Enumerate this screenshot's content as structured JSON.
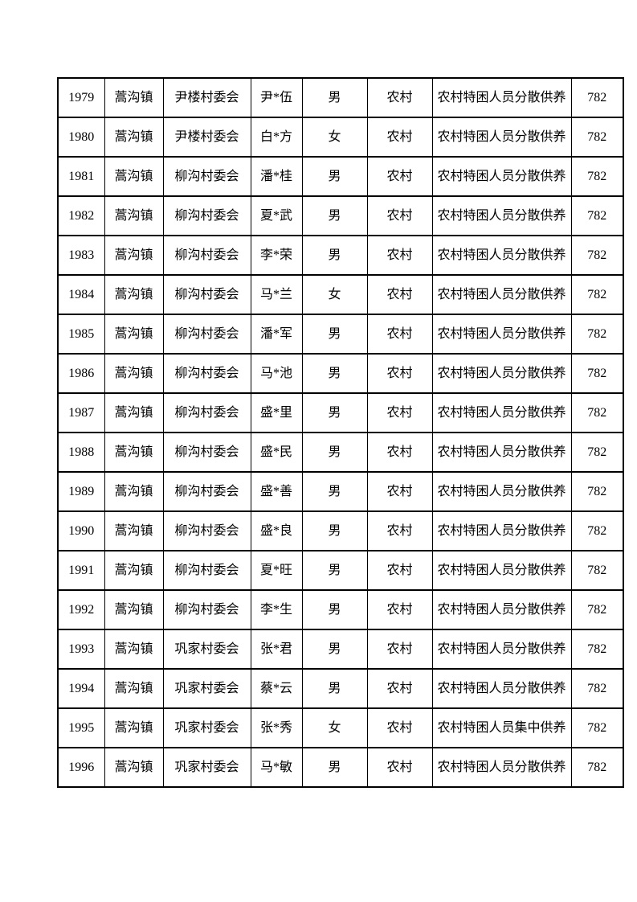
{
  "page": {
    "background_color": "#ffffff",
    "text_color": "#000000",
    "border_color": "#000000"
  },
  "table": {
    "column_keys": [
      "index",
      "town",
      "village",
      "name",
      "gender",
      "region",
      "category",
      "amount"
    ],
    "rows": [
      {
        "index": "1979",
        "town": "蒿沟镇",
        "village": "尹楼村委会",
        "name": "尹*伍",
        "gender": "男",
        "region": "农村",
        "category": "农村特困人员分散供养",
        "amount": "782"
      },
      {
        "index": "1980",
        "town": "蒿沟镇",
        "village": "尹楼村委会",
        "name": "白*方",
        "gender": "女",
        "region": "农村",
        "category": "农村特困人员分散供养",
        "amount": "782"
      },
      {
        "index": "1981",
        "town": "蒿沟镇",
        "village": "柳沟村委会",
        "name": "潘*桂",
        "gender": "男",
        "region": "农村",
        "category": "农村特困人员分散供养",
        "amount": "782"
      },
      {
        "index": "1982",
        "town": "蒿沟镇",
        "village": "柳沟村委会",
        "name": "夏*武",
        "gender": "男",
        "region": "农村",
        "category": "农村特困人员分散供养",
        "amount": "782"
      },
      {
        "index": "1983",
        "town": "蒿沟镇",
        "village": "柳沟村委会",
        "name": "李*荣",
        "gender": "男",
        "region": "农村",
        "category": "农村特困人员分散供养",
        "amount": "782"
      },
      {
        "index": "1984",
        "town": "蒿沟镇",
        "village": "柳沟村委会",
        "name": "马*兰",
        "gender": "女",
        "region": "农村",
        "category": "农村特困人员分散供养",
        "amount": "782"
      },
      {
        "index": "1985",
        "town": "蒿沟镇",
        "village": "柳沟村委会",
        "name": "潘*军",
        "gender": "男",
        "region": "农村",
        "category": "农村特困人员分散供养",
        "amount": "782"
      },
      {
        "index": "1986",
        "town": "蒿沟镇",
        "village": "柳沟村委会",
        "name": "马*池",
        "gender": "男",
        "region": "农村",
        "category": "农村特困人员分散供养",
        "amount": "782"
      },
      {
        "index": "1987",
        "town": "蒿沟镇",
        "village": "柳沟村委会",
        "name": "盛*里",
        "gender": "男",
        "region": "农村",
        "category": "农村特困人员分散供养",
        "amount": "782"
      },
      {
        "index": "1988",
        "town": "蒿沟镇",
        "village": "柳沟村委会",
        "name": "盛*民",
        "gender": "男",
        "region": "农村",
        "category": "农村特困人员分散供养",
        "amount": "782"
      },
      {
        "index": "1989",
        "town": "蒿沟镇",
        "village": "柳沟村委会",
        "name": "盛*善",
        "gender": "男",
        "region": "农村",
        "category": "农村特困人员分散供养",
        "amount": "782"
      },
      {
        "index": "1990",
        "town": "蒿沟镇",
        "village": "柳沟村委会",
        "name": "盛*良",
        "gender": "男",
        "region": "农村",
        "category": "农村特困人员分散供养",
        "amount": "782"
      },
      {
        "index": "1991",
        "town": "蒿沟镇",
        "village": "柳沟村委会",
        "name": "夏*旺",
        "gender": "男",
        "region": "农村",
        "category": "农村特困人员分散供养",
        "amount": "782"
      },
      {
        "index": "1992",
        "town": "蒿沟镇",
        "village": "柳沟村委会",
        "name": "李*生",
        "gender": "男",
        "region": "农村",
        "category": "农村特困人员分散供养",
        "amount": "782"
      },
      {
        "index": "1993",
        "town": "蒿沟镇",
        "village": "巩家村委会",
        "name": "张*君",
        "gender": "男",
        "region": "农村",
        "category": "农村特困人员分散供养",
        "amount": "782"
      },
      {
        "index": "1994",
        "town": "蒿沟镇",
        "village": "巩家村委会",
        "name": "蔡*云",
        "gender": "男",
        "region": "农村",
        "category": "农村特困人员分散供养",
        "amount": "782"
      },
      {
        "index": "1995",
        "town": "蒿沟镇",
        "village": "巩家村委会",
        "name": "张*秀",
        "gender": "女",
        "region": "农村",
        "category": "农村特困人员集中供养",
        "amount": "782"
      },
      {
        "index": "1996",
        "town": "蒿沟镇",
        "village": "巩家村委会",
        "name": "马*敏",
        "gender": "男",
        "region": "农村",
        "category": "农村特困人员分散供养",
        "amount": "782"
      }
    ]
  }
}
